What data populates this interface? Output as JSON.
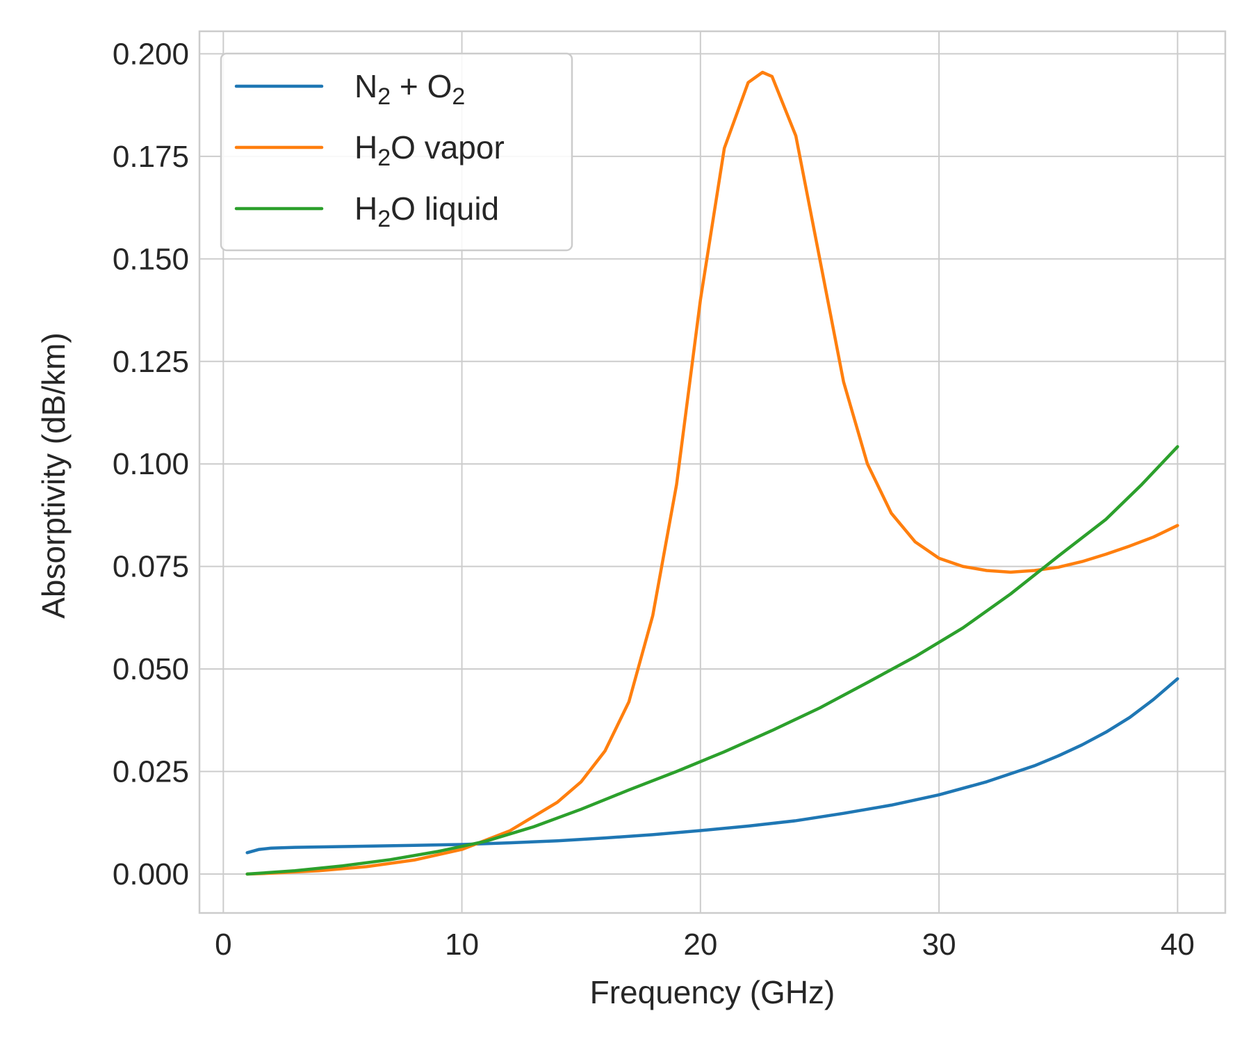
{
  "chart_data": {
    "type": "line",
    "title": "",
    "xlabel": "Frequency (GHz)",
    "ylabel": "Absorptivity (dB/km)",
    "xlim": [
      -1,
      42
    ],
    "ylim": [
      -0.0095,
      0.2055
    ],
    "grid": true,
    "legend_position": "top-left",
    "x_ticks": [
      0,
      10,
      20,
      30,
      40
    ],
    "y_ticks": [
      0.0,
      0.025,
      0.05,
      0.075,
      0.1,
      0.125,
      0.15,
      0.175,
      0.2
    ],
    "x_tick_labels": [
      "0",
      "10",
      "20",
      "30",
      "40"
    ],
    "y_tick_labels": [
      "0.000",
      "0.025",
      "0.050",
      "0.075",
      "0.100",
      "0.125",
      "0.150",
      "0.175",
      "0.200"
    ],
    "series": [
      {
        "name": "N2 + O2",
        "legend_main": "N",
        "legend_sub": "2",
        "legend_rest": " + O",
        "legend_sub2": "2",
        "color": "#1f77b4",
        "points": [
          [
            1,
            0.0052
          ],
          [
            1.5,
            0.006
          ],
          [
            2,
            0.0063
          ],
          [
            3,
            0.0065
          ],
          [
            5,
            0.0067
          ],
          [
            8,
            0.007
          ],
          [
            10,
            0.0072
          ],
          [
            12,
            0.0076
          ],
          [
            14,
            0.0081
          ],
          [
            16,
            0.0088
          ],
          [
            18,
            0.0096
          ],
          [
            20,
            0.0106
          ],
          [
            22,
            0.0117
          ],
          [
            24,
            0.013
          ],
          [
            26,
            0.0148
          ],
          [
            28,
            0.0168
          ],
          [
            30,
            0.0193
          ],
          [
            32,
            0.0225
          ],
          [
            34,
            0.0264
          ],
          [
            35,
            0.0288
          ],
          [
            36,
            0.0315
          ],
          [
            37,
            0.0346
          ],
          [
            38,
            0.0382
          ],
          [
            39,
            0.0426
          ],
          [
            40,
            0.0476
          ]
        ]
      },
      {
        "name": "H2O vapor",
        "legend_main": "H",
        "legend_sub": "2",
        "legend_rest": "O vapor",
        "color": "#ff7f0e",
        "points": [
          [
            1,
            0.0
          ],
          [
            2,
            0.0002
          ],
          [
            4,
            0.0008
          ],
          [
            6,
            0.0018
          ],
          [
            8,
            0.0034
          ],
          [
            10,
            0.006
          ],
          [
            12,
            0.0105
          ],
          [
            14,
            0.0175
          ],
          [
            15,
            0.0225
          ],
          [
            16,
            0.03
          ],
          [
            17,
            0.042
          ],
          [
            18,
            0.063
          ],
          [
            19,
            0.095
          ],
          [
            20,
            0.14
          ],
          [
            21,
            0.177
          ],
          [
            22,
            0.193
          ],
          [
            22.6,
            0.1955
          ],
          [
            23,
            0.1945
          ],
          [
            24,
            0.18
          ],
          [
            25,
            0.15
          ],
          [
            26,
            0.12
          ],
          [
            27,
            0.1
          ],
          [
            28,
            0.088
          ],
          [
            29,
            0.081
          ],
          [
            30,
            0.077
          ],
          [
            31,
            0.075
          ],
          [
            32,
            0.074
          ],
          [
            33,
            0.0736
          ],
          [
            34,
            0.074
          ],
          [
            35,
            0.0748
          ],
          [
            36,
            0.0762
          ],
          [
            37,
            0.078
          ],
          [
            38,
            0.08
          ],
          [
            39,
            0.0822
          ],
          [
            40,
            0.085
          ]
        ]
      },
      {
        "name": "H2O liquid",
        "legend_main": "H",
        "legend_sub": "2",
        "legend_rest": "O liquid",
        "color": "#2ca02c",
        "points": [
          [
            1,
            0.0
          ],
          [
            3,
            0.0008
          ],
          [
            5,
            0.002
          ],
          [
            7,
            0.0035
          ],
          [
            9,
            0.0055
          ],
          [
            11,
            0.008
          ],
          [
            13,
            0.0115
          ],
          [
            15,
            0.0158
          ],
          [
            17,
            0.0205
          ],
          [
            19,
            0.025
          ],
          [
            21,
            0.0298
          ],
          [
            23,
            0.035
          ],
          [
            25,
            0.0405
          ],
          [
            27,
            0.0467
          ],
          [
            29,
            0.053
          ],
          [
            31,
            0.06
          ],
          [
            33,
            0.0683
          ],
          [
            35,
            0.0775
          ],
          [
            37,
            0.0865
          ],
          [
            38.5,
            0.095
          ],
          [
            40,
            0.1042
          ]
        ]
      }
    ]
  }
}
